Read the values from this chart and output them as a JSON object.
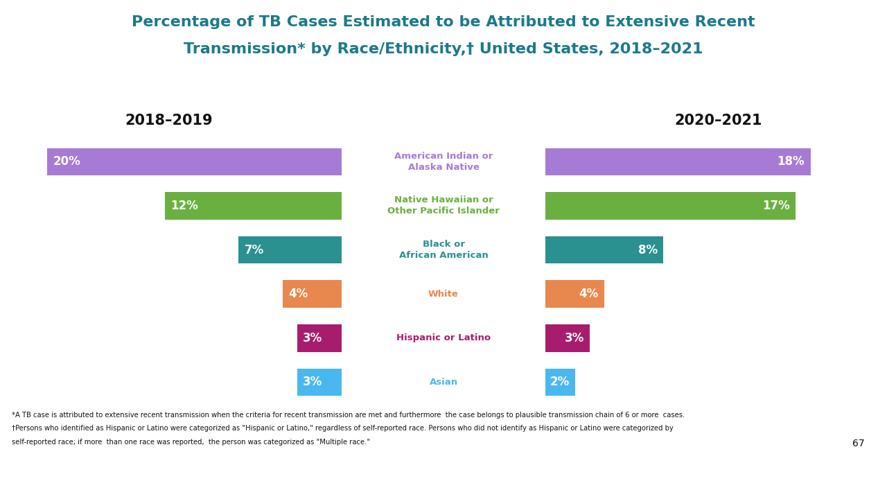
{
  "title_line1": "Percentage of TB Cases Estimated to be Attributed to Extensive Recent",
  "title_line2": "Transmission* by Race/Ethnicity,† United States, 2018–2021",
  "left_period": "2018–2019",
  "right_period": "2020–2021",
  "categories": [
    "American Indian or\nAlaska Native",
    "Native Hawaiian or\nOther Pacific Islander",
    "Black or\nAfrican American",
    "White",
    "Hispanic or Latino",
    "Asian"
  ],
  "left_values": [
    20,
    12,
    7,
    4,
    3,
    3
  ],
  "right_values": [
    18,
    17,
    8,
    4,
    3,
    2
  ],
  "colors": [
    "#a77ad4",
    "#6ab040",
    "#2a9090",
    "#e8874e",
    "#a81c6e",
    "#4ab8f0"
  ],
  "label_colors": [
    "#a77ad4",
    "#6ab040",
    "#2a9090",
    "#e8874e",
    "#a81c6e",
    "#4ab8f0"
  ],
  "title_color": "#1a7a8a",
  "footnote1": "*A TB case is attributed to extensive recent transmission when the criteria for recent transmission are met and furthermore  the case belongs to plausible transmission chain of 6 or more  cases.",
  "footnote2": "†Persons who identified as Hispanic or Latino were categorized as \"Hispanic or Latino,\" regardless of self-reported race. Persons who did not identify as Hispanic or Latino were categorized by",
  "footnote3": "self-reported race; if more  than one race was reported,  the person was categorized as \"Multiple race.\"",
  "page_number": "67",
  "background_color": "#ffffff",
  "bar_height": 0.62,
  "max_value": 22,
  "strip_colors": [
    "#1a8a8a",
    "#9b59d0",
    "#b01c6e",
    "#c8c8c8",
    "#e8834e",
    "#1a4070"
  ]
}
